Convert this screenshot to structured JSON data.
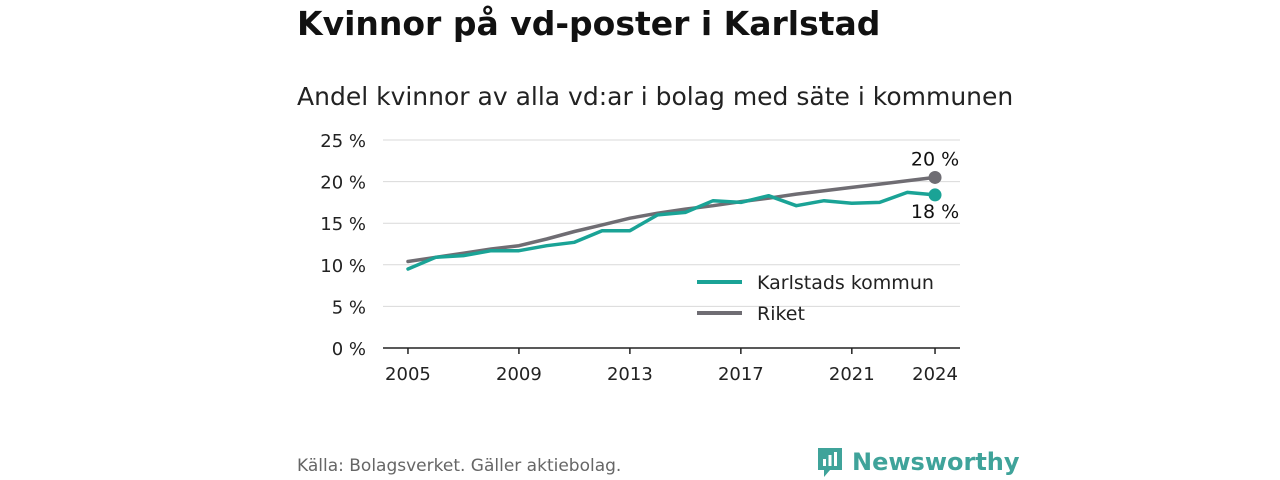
{
  "title": "Kvinnor på vd-poster i Karlstad",
  "subtitle": "Andel kvinnor av alla vd:ar i bolag med säte i kommunen",
  "source": "Källa: Bolagsverket. Gäller aktiebolag.",
  "brand": {
    "name": "Newsworthy",
    "icon": "newsworthy-logo-icon",
    "color": "#3fa39a"
  },
  "chart_data": {
    "type": "line",
    "x": [
      2005,
      2006,
      2007,
      2008,
      2009,
      2010,
      2011,
      2012,
      2013,
      2014,
      2015,
      2016,
      2017,
      2018,
      2019,
      2020,
      2021,
      2022,
      2023,
      2024
    ],
    "x_ticks": [
      2005,
      2009,
      2013,
      2017,
      2021,
      2024
    ],
    "y_ticks": [
      0,
      5,
      10,
      15,
      20,
      25
    ],
    "y_tick_labels": [
      "0 %",
      "5 %",
      "10 %",
      "15 %",
      "20 %",
      "25 %"
    ],
    "ylim": [
      0,
      25
    ],
    "xlim": [
      2004.1,
      2024.9
    ],
    "grid": "horizontal",
    "legend_position": "bottom-right",
    "series": [
      {
        "name": "Karlstads kommun",
        "color": "#1aa396",
        "values": [
          9.5,
          10.9,
          11.1,
          11.7,
          11.7,
          12.3,
          12.7,
          14.1,
          14.1,
          16.0,
          16.3,
          17.7,
          17.5,
          18.3,
          17.1,
          17.7,
          17.4,
          17.5,
          18.7,
          18.4
        ],
        "end_label": "18 %"
      },
      {
        "name": "Riket",
        "color": "#6f6d73",
        "values": [
          10.4,
          10.9,
          11.4,
          11.9,
          12.3,
          13.1,
          14.0,
          14.8,
          15.6,
          16.2,
          16.7,
          17.1,
          17.6,
          18.0,
          18.5,
          18.9,
          19.3,
          19.7,
          20.1,
          20.5
        ],
        "end_label": "20 %"
      }
    ]
  }
}
